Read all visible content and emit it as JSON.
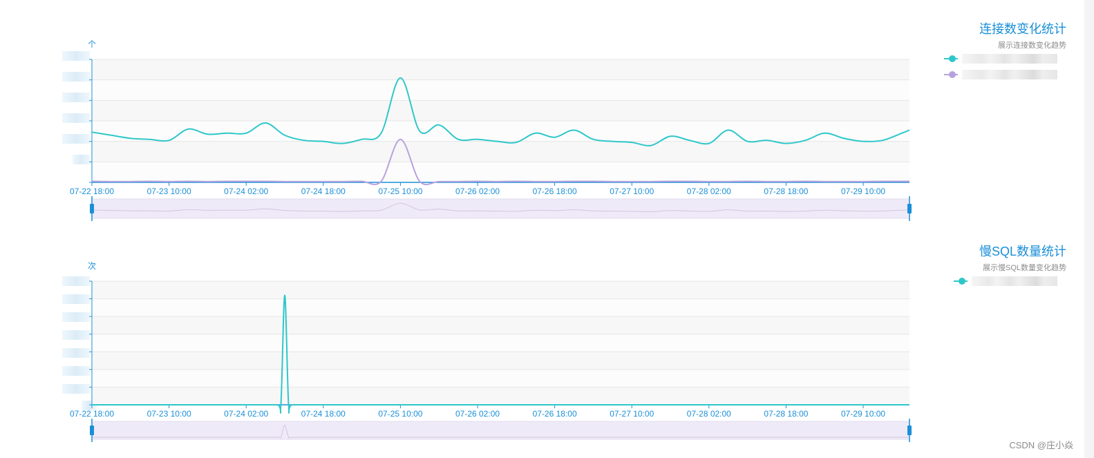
{
  "chart_data": [
    {
      "type": "line",
      "title": "连接数变化统计",
      "subtitle": "展示连接数变化趋势",
      "y_unit": "个",
      "x_tick_labels": [
        "07-22 18:00",
        "07-23 10:00",
        "07-24 02:00",
        "07-24 18:00",
        "07-25 10:00",
        "07-26 02:00",
        "07-26 18:00",
        "07-27 10:00",
        "07-28 02:00",
        "07-28 18:00",
        "07-29 10:00"
      ],
      "ylim": [
        0,
        6
      ],
      "grid": "horizontal bands",
      "legend_placement": "right",
      "has_data_zoom": true,
      "x": [
        0,
        0.25,
        0.5,
        0.75,
        1,
        1.25,
        1.5,
        1.75,
        2,
        2.25,
        2.5,
        2.75,
        3,
        3.25,
        3.5,
        3.75,
        4,
        4.25,
        4.5,
        4.75,
        5,
        5.25,
        5.5,
        5.75,
        6,
        6.25,
        6.5,
        6.75,
        7,
        7.25,
        7.5,
        7.75,
        8,
        8.25,
        8.5,
        8.75,
        9,
        9.25,
        9.5,
        9.75,
        10,
        10.25,
        10.5,
        10.6
      ],
      "series": [
        {
          "name": "",
          "color": "#2ec7c9",
          "values": [
            2.45,
            2.3,
            2.15,
            2.1,
            2.05,
            2.6,
            2.35,
            2.4,
            2.4,
            2.9,
            2.3,
            2.05,
            2.0,
            1.9,
            2.1,
            2.4,
            5.1,
            2.5,
            2.8,
            2.1,
            2.1,
            2.0,
            1.95,
            2.4,
            2.2,
            2.55,
            2.1,
            2.0,
            1.95,
            1.8,
            2.25,
            2.05,
            1.9,
            2.55,
            2.0,
            2.05,
            1.9,
            2.05,
            2.4,
            2.15,
            2.0,
            2.05,
            2.4,
            2.55
          ]
        },
        {
          "name": "",
          "color": "#b6a2de",
          "values": [
            0.05,
            0.04,
            0.04,
            0.05,
            0.04,
            0.05,
            0.04,
            0.05,
            0.05,
            0.05,
            0.04,
            0.04,
            0.04,
            0.04,
            0.05,
            0.05,
            2.1,
            0.05,
            0.04,
            0.04,
            0.05,
            0.04,
            0.05,
            0.04,
            0.04,
            0.05,
            0.05,
            0.04,
            0.04,
            0.04,
            0.05,
            0.05,
            0.04,
            0.04,
            0.05,
            0.04,
            0.04,
            0.05,
            0.04,
            0.04,
            0.04,
            0.05,
            0.05,
            0.05
          ]
        }
      ]
    },
    {
      "type": "line",
      "title": "慢SQL数量统计",
      "subtitle": "展示慢SQL数量变化趋势",
      "y_unit": "次",
      "x_tick_labels": [
        "07-22 18:00",
        "07-23 10:00",
        "07-24 02:00",
        "07-24 18:00",
        "07-25 10:00",
        "07-26 02:00",
        "07-26 18:00",
        "07-27 10:00",
        "07-28 02:00",
        "07-28 18:00",
        "07-29 10:00"
      ],
      "ylim": [
        0,
        7
      ],
      "grid": "horizontal bands",
      "legend_placement": "right",
      "has_data_zoom": true,
      "x": [
        0,
        0.5,
        1,
        1.5,
        2,
        2.4,
        2.45,
        2.5,
        2.55,
        2.6,
        3,
        3.5,
        4,
        4.5,
        5,
        5.5,
        6,
        6.5,
        7,
        7.5,
        8,
        8.5,
        9,
        9.5,
        10,
        10.6
      ],
      "series": [
        {
          "name": "",
          "color": "#2ec7c9",
          "values": [
            0,
            0,
            0,
            0,
            0,
            0,
            0,
            6.2,
            0,
            0,
            0,
            0,
            0,
            0,
            0,
            0,
            0,
            0,
            0,
            0,
            0,
            0,
            0,
            0,
            0,
            0
          ]
        }
      ]
    }
  ],
  "watermark": "CSDN @庄小焱"
}
